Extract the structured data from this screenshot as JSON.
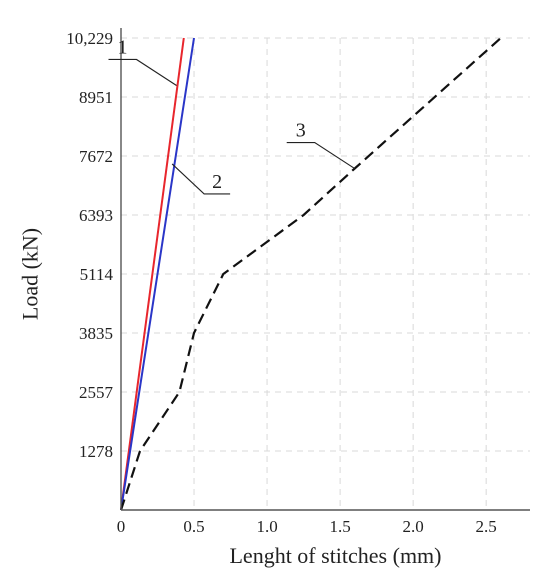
{
  "chart_data": {
    "type": "line",
    "xlabel": "Lenght of stitches (mm)",
    "ylabel": "Load (kN)",
    "xlim": [
      0,
      2.8
    ],
    "ylim": [
      0,
      10229
    ],
    "x_ticks": [
      0,
      0.5,
      1.0,
      1.5,
      2.0,
      2.5
    ],
    "x_tick_labels": [
      "0",
      "0.5",
      "1.0",
      "1.5",
      "2.0",
      "2.5"
    ],
    "y_ticks": [
      1278,
      2557,
      3835,
      5114,
      6393,
      7672,
      8951,
      10229
    ],
    "y_tick_labels": [
      "1278",
      "2557",
      "3835",
      "5114",
      "6393",
      "7672",
      "8951",
      "10,229"
    ],
    "grid": true,
    "legend": "none",
    "series": [
      {
        "label": "1",
        "color": "#e8262d",
        "style": "solid",
        "points": [
          [
            0,
            0
          ],
          [
            0.43,
            10229
          ]
        ]
      },
      {
        "label": "2",
        "color": "#2a36c8",
        "style": "solid",
        "points": [
          [
            0,
            0
          ],
          [
            0.5,
            10229
          ]
        ]
      },
      {
        "label": "3",
        "color": "#111111",
        "style": "dashed",
        "points": [
          [
            0,
            0
          ],
          [
            0.13,
            1278
          ],
          [
            0.4,
            2557
          ],
          [
            0.5,
            3835
          ],
          [
            0.7,
            5114
          ],
          [
            1.25,
            6393
          ],
          [
            1.6,
            7400
          ],
          [
            2.6,
            10229
          ]
        ]
      }
    ],
    "callouts": [
      {
        "label": "1",
        "series": 0,
        "at": [
          0.38,
          9200
        ],
        "leader": "left"
      },
      {
        "label": "2",
        "series": 1,
        "at": [
          0.35,
          7500
        ],
        "leader": "right"
      },
      {
        "label": "3",
        "series": 2,
        "at": [
          1.6,
          7400
        ],
        "leader": "left"
      }
    ]
  }
}
